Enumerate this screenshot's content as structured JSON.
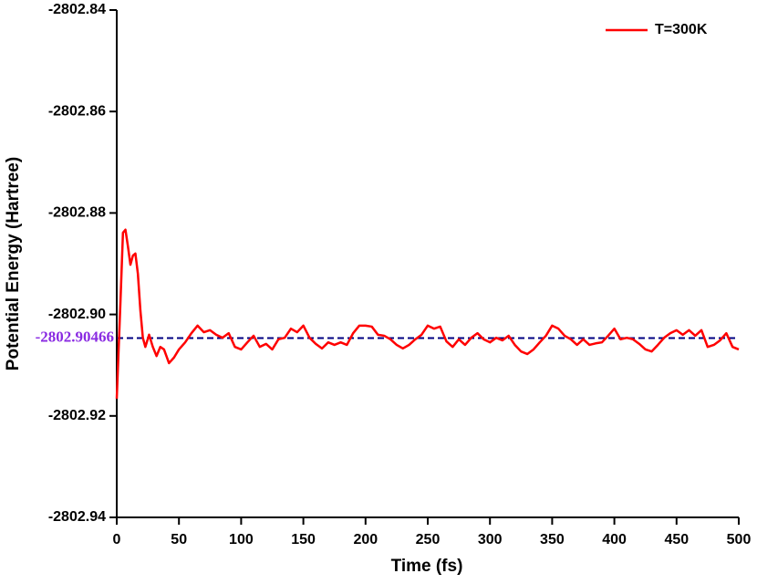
{
  "chart_data": {
    "type": "line",
    "x_label": "Time (fs)",
    "y_label": "Potential Energy (Hartree)",
    "x": [
      0,
      3,
      5,
      7,
      9,
      11,
      13,
      15,
      17,
      19,
      21,
      23,
      26,
      29,
      32,
      35,
      38,
      42,
      46,
      50,
      55,
      60,
      65,
      70,
      75,
      80,
      85,
      90,
      95,
      100,
      105,
      110,
      115,
      120,
      125,
      130,
      135,
      140,
      145,
      150,
      155,
      160,
      165,
      170,
      175,
      180,
      185,
      190,
      195,
      200,
      205,
      210,
      215,
      220,
      225,
      230,
      235,
      240,
      245,
      250,
      255,
      260,
      265,
      270,
      275,
      280,
      285,
      290,
      295,
      300,
      305,
      310,
      315,
      320,
      325,
      330,
      335,
      340,
      345,
      350,
      355,
      360,
      365,
      370,
      375,
      380,
      385,
      390,
      395,
      400,
      405,
      410,
      415,
      420,
      425,
      430,
      435,
      440,
      445,
      450,
      455,
      460,
      465,
      470,
      475,
      480,
      485,
      490,
      495,
      500
    ],
    "series": [
      {
        "name": "T=300K",
        "color": "#ff0000",
        "values": [
          -2802.9166,
          -2802.8974,
          -2802.8839,
          -2802.8833,
          -2802.8866,
          -2802.8902,
          -2802.8884,
          -2802.888,
          -2802.892,
          -2802.8992,
          -2802.9046,
          -2802.9064,
          -2802.904,
          -2802.9064,
          -2802.9082,
          -2802.9064,
          -2802.9069,
          -2802.9096,
          -2802.9085,
          -2802.9069,
          -2802.9055,
          -2802.9037,
          -2802.9022,
          -2802.9035,
          -2802.9031,
          -2802.904,
          -2802.9046,
          -2802.9037,
          -2802.9064,
          -2802.9069,
          -2802.9055,
          -2802.9042,
          -2802.9064,
          -2802.9058,
          -2802.9069,
          -2802.9049,
          -2802.9046,
          -2802.9028,
          -2802.9035,
          -2802.9022,
          -2802.9046,
          -2802.9058,
          -2802.9067,
          -2802.9055,
          -2802.906,
          -2802.9055,
          -2802.906,
          -2802.9037,
          -2802.9022,
          -2802.9022,
          -2802.9024,
          -2802.904,
          -2802.9042,
          -2802.9049,
          -2802.906,
          -2802.9067,
          -2802.906,
          -2802.9049,
          -2802.904,
          -2802.9022,
          -2802.9028,
          -2802.9024,
          -2802.9053,
          -2802.9064,
          -2802.9049,
          -2802.906,
          -2802.9046,
          -2802.9037,
          -2802.9049,
          -2802.9055,
          -2802.9046,
          -2802.9051,
          -2802.9042,
          -2802.906,
          -2802.9073,
          -2802.9078,
          -2802.9069,
          -2802.9055,
          -2802.9042,
          -2802.9022,
          -2802.9028,
          -2802.9042,
          -2802.9049,
          -2802.906,
          -2802.9049,
          -2802.906,
          -2802.9057,
          -2802.9055,
          -2802.9042,
          -2802.9028,
          -2802.9049,
          -2802.9046,
          -2802.9049,
          -2802.9058,
          -2802.9069,
          -2802.9073,
          -2802.906,
          -2802.9046,
          -2802.9037,
          -2802.9031,
          -2802.904,
          -2802.9031,
          -2802.9042,
          -2802.9031,
          -2802.9064,
          -2802.906,
          -2802.9051,
          -2802.9037,
          -2802.9064,
          -2802.9069
        ]
      }
    ],
    "reference_line": {
      "value": -2802.90466,
      "color": "#000080",
      "label_color": "#8a2be2"
    },
    "xlim": [
      0,
      500
    ],
    "xticks": [
      0,
      50,
      100,
      150,
      200,
      250,
      300,
      350,
      400,
      450,
      500
    ],
    "ylim": [
      -2802.94,
      -2802.84
    ],
    "yticks": [
      -2802.94,
      -2802.92,
      {
        "value": -2802.9,
        "label": "-2802.90"
      },
      -2802.88,
      -2802.86,
      -2802.84
    ],
    "legend": "top-right",
    "grid": false
  }
}
